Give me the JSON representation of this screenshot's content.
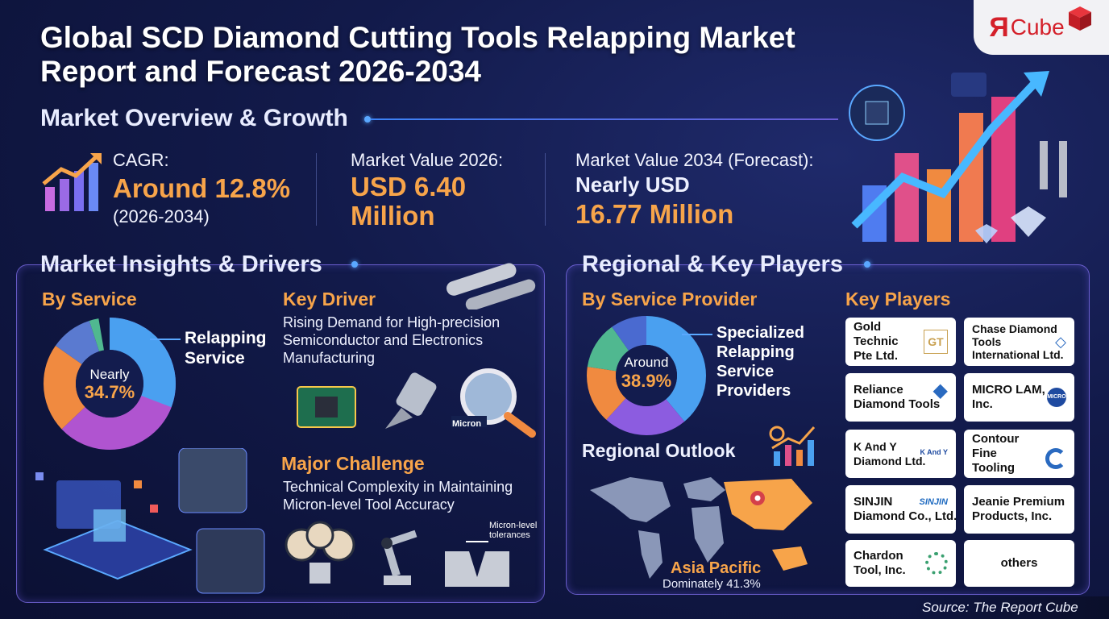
{
  "brand": {
    "logo_mark": "Я",
    "logo_word": "Cube"
  },
  "title": {
    "line1": "Global SCD Diamond Cutting Tools Relapping Market",
    "line2": "Report and Forecast 2026-2034"
  },
  "overview": {
    "heading": "Market Overview & Growth",
    "cagr_label": "CAGR:",
    "cagr_value": "Around 12.8%",
    "cagr_period": "(2026-2034)",
    "mv2026_label": "Market Value 2026:",
    "mv2026_line1": "USD 6.40",
    "mv2026_line2": "Million",
    "mv2034_label": "Market Value 2034 (Forecast):",
    "mv2034_line1": "Nearly USD",
    "mv2034_line2": "16.77 Million"
  },
  "insights": {
    "heading": "Market Insights & Drivers",
    "by_service": "By Service",
    "donut_center_1": "Nearly",
    "donut_center_2": "34.7%",
    "donut_label_1": "Relapping",
    "donut_label_2": "Service",
    "key_driver": "Key Driver",
    "driver_text_1": "Rising Demand for High-precision",
    "driver_text_2": "Semiconductor and Electronics",
    "driver_text_3": "Manufacturing",
    "micron_tag": "Micron",
    "major_challenge": "Major Challenge",
    "challenge_text_1": "Technical Complexity in Maintaining",
    "challenge_text_2": "Micron-level Tool Accuracy",
    "tol_1": "Micron-level",
    "tol_2": "tolerances"
  },
  "regional": {
    "heading": "Regional & Key Players",
    "by_provider": "By Service Provider",
    "donut_center_1": "Around",
    "donut_center_2": "38.9%",
    "donut_label_1": "Specialized",
    "donut_label_2": "Relapping",
    "donut_label_3": "Service",
    "donut_label_4": "Providers",
    "regional_outlook": "Regional Outlook",
    "region_name": "Asia Pacific",
    "region_share": "Dominately 41.3%",
    "key_players": "Key Players",
    "players": [
      {
        "name_1": "Gold Technic",
        "name_2": "Pte Ltd.",
        "logo": "GT"
      },
      {
        "name_1": "Chase Diamond",
        "name_2": "Tools",
        "name_3": "International Ltd.",
        "logo": "diamond-logo"
      },
      {
        "name_1": "Reliance",
        "name_2": "Diamond Tools",
        "logo": "diamond-logo"
      },
      {
        "name_1": "MICRO LAM,",
        "name_2": "Inc.",
        "logo": "MICRO"
      },
      {
        "name_1": "K And Y",
        "name_2": "Diamond Ltd.",
        "logo": "K And Y"
      },
      {
        "name_1": "Contour Fine",
        "name_2": "Tooling",
        "logo": "c-logo"
      },
      {
        "name_1": "SINJIN",
        "name_2": "Diamond Co., Ltd.",
        "logo": "SINJIN"
      },
      {
        "name_1": "Jeanie Premium",
        "name_2": "Products, Inc.",
        "logo": ""
      },
      {
        "name_1": "Chardon",
        "name_2": "Tool, Inc.",
        "logo": "ring-logo"
      },
      {
        "name_1": "others",
        "logo": ""
      }
    ]
  },
  "source": "Source: The Report Cube",
  "colors": {
    "accent": "#f7a44a",
    "panel_border": "#8c78ff",
    "bg": "#121a4a"
  }
}
